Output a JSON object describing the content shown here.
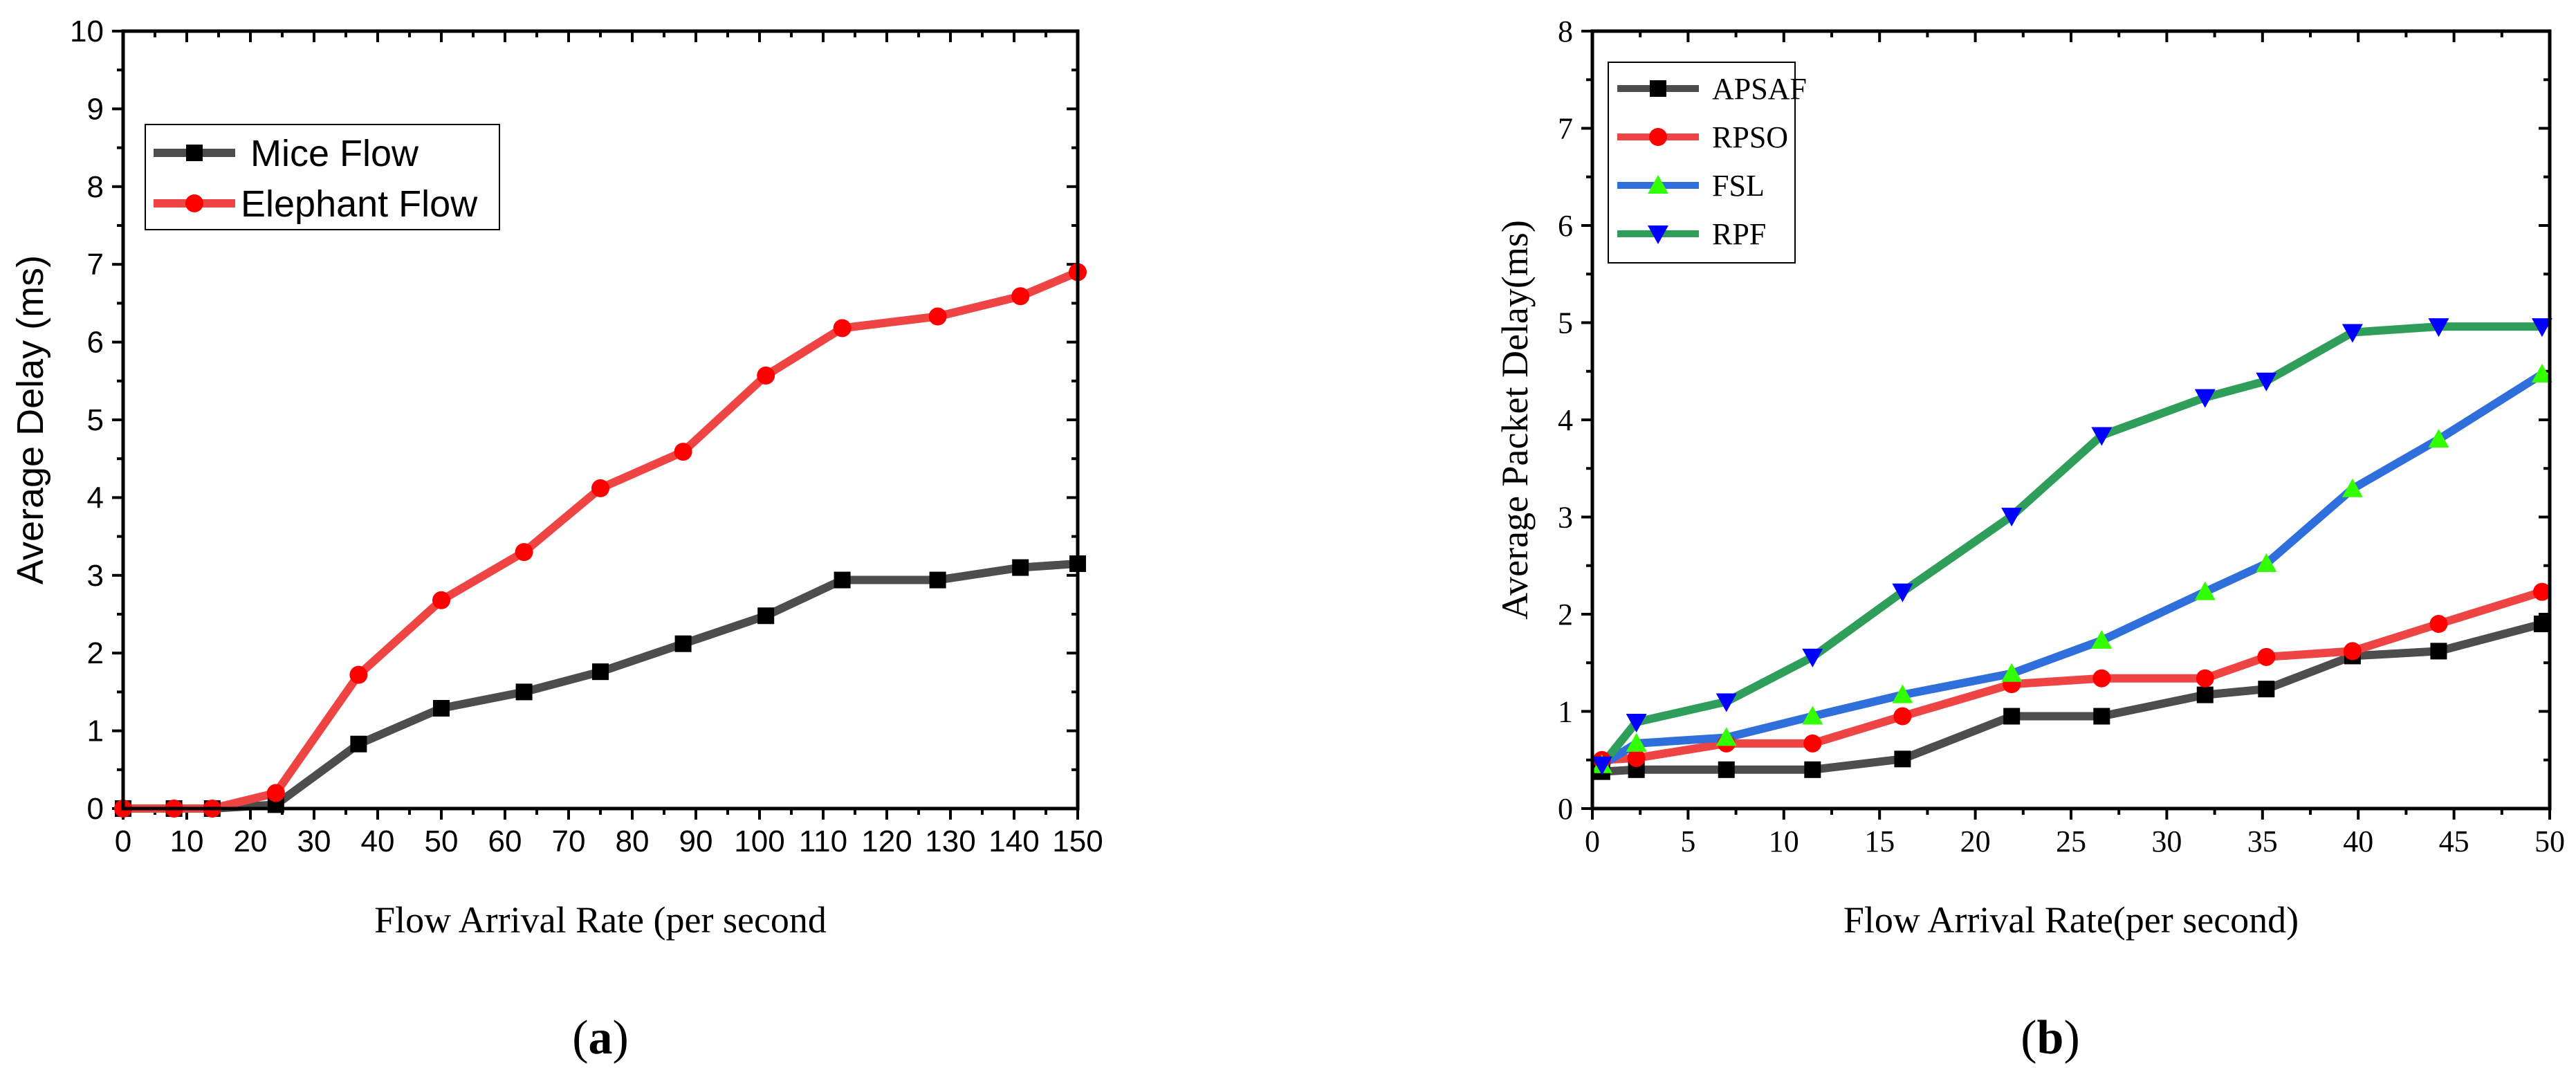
{
  "chart_data": [
    {
      "type": "line",
      "panel": "a",
      "panel_label": "a",
      "title": "",
      "xlabel": "Flow Arrival Rate (per second",
      "ylabel": "Average Delay (ms)",
      "xlim": [
        0,
        150
      ],
      "ylim": [
        0,
        10
      ],
      "xticks": [
        0,
        10,
        20,
        30,
        40,
        50,
        60,
        70,
        80,
        90,
        100,
        110,
        120,
        130,
        140,
        150
      ],
      "yticks": [
        0,
        1,
        2,
        3,
        4,
        5,
        6,
        7,
        8,
        9,
        10
      ],
      "legend_position": "top-left",
      "series": [
        {
          "name": "Mice Flow",
          "color": "#4d4d4d",
          "marker": "square",
          "marker_color": "#000000",
          "x": [
            0,
            8,
            14,
            24,
            37,
            50,
            63,
            75,
            88,
            101,
            113,
            128,
            141,
            150
          ],
          "y": [
            0,
            0,
            0,
            0.05,
            0.83,
            1.29,
            1.5,
            1.76,
            2.12,
            2.48,
            2.94,
            2.94,
            3.1,
            3.15
          ]
        },
        {
          "name": "Elephant Flow",
          "color": "#ef4444",
          "marker": "circle",
          "marker_color": "#ff0000",
          "x": [
            0,
            8,
            14,
            24,
            37,
            50,
            63,
            75,
            88,
            101,
            113,
            128,
            141,
            150
          ],
          "y": [
            0,
            0,
            0,
            0.2,
            1.72,
            2.68,
            3.3,
            4.12,
            4.59,
            5.57,
            6.18,
            6.33,
            6.59,
            6.9
          ]
        }
      ]
    },
    {
      "type": "line",
      "panel": "b",
      "panel_label": "b",
      "title": "",
      "xlabel": "Flow Arrival Rate(per second)",
      "ylabel": "Average Packet Delay(ms)",
      "xlim": [
        0,
        50
      ],
      "ylim": [
        0,
        8
      ],
      "xticks": [
        0,
        5,
        10,
        15,
        20,
        25,
        30,
        35,
        40,
        45,
        50
      ],
      "yticks": [
        0,
        1,
        2,
        3,
        4,
        5,
        6,
        7,
        8
      ],
      "legend_position": "top-left",
      "series": [
        {
          "name": "APSAF",
          "color": "#4d4d4d",
          "marker": "square",
          "marker_color": "#000000",
          "x": [
            0.5,
            2.3,
            7,
            11.5,
            16.2,
            21.9,
            26.6,
            32,
            35.2,
            39.7,
            44.2,
            49.6
          ],
          "y": [
            0.38,
            0.4,
            0.4,
            0.4,
            0.51,
            0.95,
            0.95,
            1.17,
            1.23,
            1.57,
            1.62,
            1.9
          ]
        },
        {
          "name": "RPSO",
          "color": "#ef4444",
          "marker": "circle",
          "marker_color": "#ff0000",
          "x": [
            0.5,
            2.3,
            7,
            11.5,
            16.2,
            21.9,
            26.6,
            32,
            35.2,
            39.7,
            44.2,
            49.6
          ],
          "y": [
            0.5,
            0.52,
            0.67,
            0.67,
            0.95,
            1.28,
            1.34,
            1.34,
            1.56,
            1.62,
            1.9,
            2.23
          ]
        },
        {
          "name": "FSL",
          "color": "#2f6fdb",
          "marker": "triangle-up",
          "marker_color": "#33ff00",
          "x": [
            0.5,
            2.3,
            7,
            11.5,
            16.2,
            21.9,
            26.6,
            32,
            35.2,
            39.7,
            44.2,
            49.6
          ],
          "y": [
            0.45,
            0.67,
            0.73,
            0.95,
            1.17,
            1.39,
            1.73,
            2.23,
            2.52,
            3.29,
            3.8,
            4.47
          ]
        },
        {
          "name": "RPF",
          "color": "#2f9e5a",
          "marker": "triangle-down",
          "marker_color": "#0000ff",
          "x": [
            0.5,
            2.3,
            7,
            11.5,
            16.2,
            21.9,
            26.6,
            32,
            35.2,
            39.7,
            44.2,
            49.6
          ],
          "y": [
            0.45,
            0.89,
            1.1,
            1.56,
            2.23,
            3.01,
            3.84,
            4.23,
            4.4,
            4.9,
            4.96,
            4.96
          ]
        }
      ]
    }
  ]
}
